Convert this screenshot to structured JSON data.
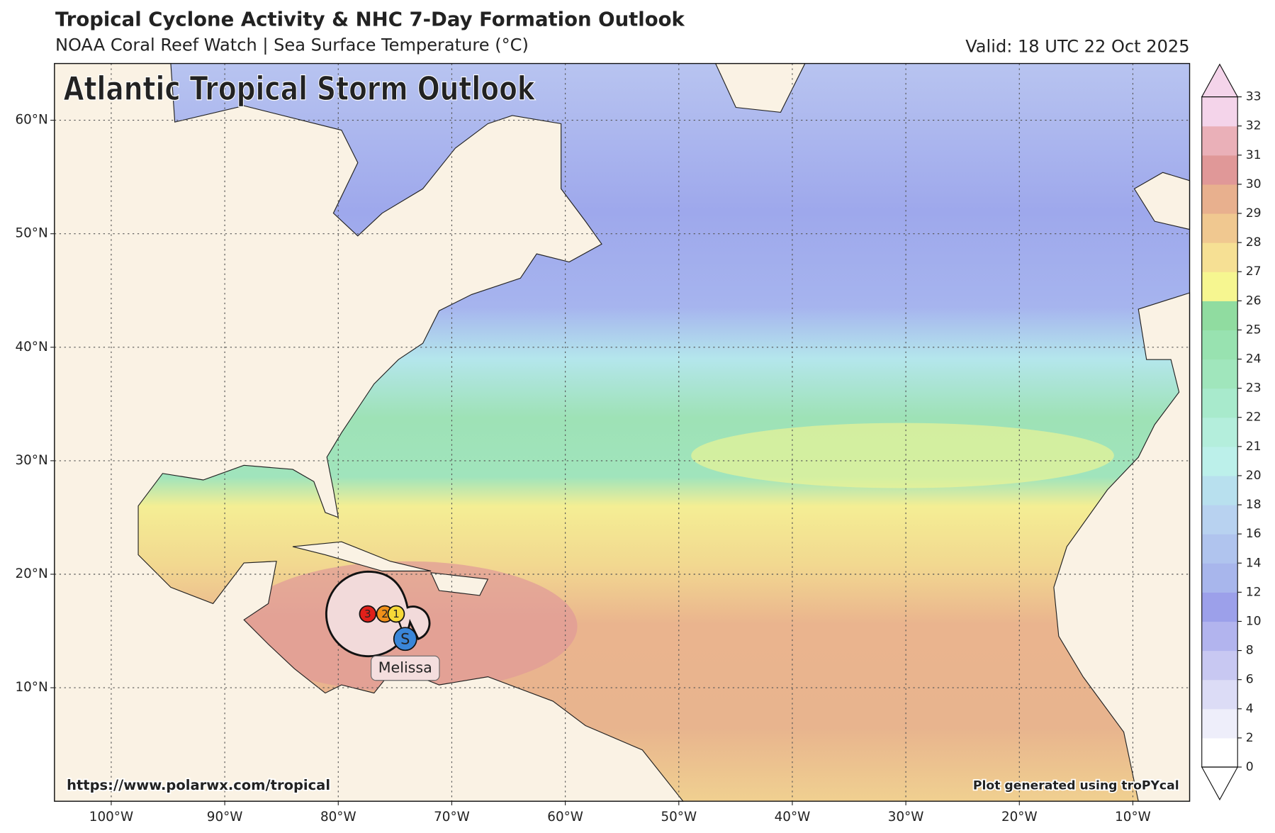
{
  "header": {
    "title": "Tropical Cyclone Activity & NHC 7-Day Formation Outlook",
    "subtitle": "NOAA Coral Reef Watch | Sea Surface Temperature (°C)",
    "valid": "Valid: 18 UTC 22 Oct 2025"
  },
  "map": {
    "overlay_title": "Atlantic Tropical Storm Outlook",
    "xlim": [
      -105,
      -5
    ],
    "ylim": [
      0,
      65
    ],
    "grid": true,
    "xticks": [
      {
        "value": -100,
        "label": "100°W"
      },
      {
        "value": -90,
        "label": "90°W"
      },
      {
        "value": -80,
        "label": "80°W"
      },
      {
        "value": -70,
        "label": "70°W"
      },
      {
        "value": -60,
        "label": "60°W"
      },
      {
        "value": -50,
        "label": "50°W"
      },
      {
        "value": -40,
        "label": "40°W"
      },
      {
        "value": -30,
        "label": "30°W"
      },
      {
        "value": -20,
        "label": "20°W"
      },
      {
        "value": -10,
        "label": "10°W"
      }
    ],
    "yticks": [
      {
        "value": 10,
        "label": "10°N"
      },
      {
        "value": 20,
        "label": "20°N"
      },
      {
        "value": 30,
        "label": "30°N"
      },
      {
        "value": 40,
        "label": "40°N"
      },
      {
        "value": 50,
        "label": "50°N"
      },
      {
        "value": 60,
        "label": "60°N"
      }
    ]
  },
  "storm": {
    "name": "Melissa",
    "track": [
      {
        "label": "3",
        "lon": -77.4,
        "lat": 16.5,
        "color": "#e0201a"
      },
      {
        "label": "2",
        "lon": -75.9,
        "lat": 16.5,
        "color": "#f0901a"
      },
      {
        "label": "1",
        "lon": -74.9,
        "lat": 16.5,
        "color": "#f6d838"
      },
      {
        "label": "S",
        "lon": -74.1,
        "lat": 14.3,
        "color": "#3a86d8"
      }
    ]
  },
  "colorbar": {
    "levels": [
      0,
      2,
      4,
      6,
      8,
      10,
      12,
      14,
      16,
      18,
      20,
      21,
      22,
      23,
      24,
      25,
      26,
      27,
      28,
      29,
      30,
      31,
      32,
      33
    ],
    "colors": [
      "#ffffff",
      "#eeeefa",
      "#dcdcf6",
      "#c8c8f2",
      "#b2b4ee",
      "#9ca0ea",
      "#a8b6ec",
      "#b0c4ee",
      "#b8d2f0",
      "#b8e0ee",
      "#bcf0ea",
      "#b4eedc",
      "#a8eacc",
      "#a0e6bc",
      "#98e2b0",
      "#90dca0",
      "#f6f690",
      "#f6e094",
      "#f0c890",
      "#e8b08e",
      "#e09898",
      "#eab0b8",
      "#f4d4ea"
    ]
  },
  "footer": {
    "left": "https://www.polarwx.com/tropical",
    "right": "Plot generated using troPYcal"
  }
}
